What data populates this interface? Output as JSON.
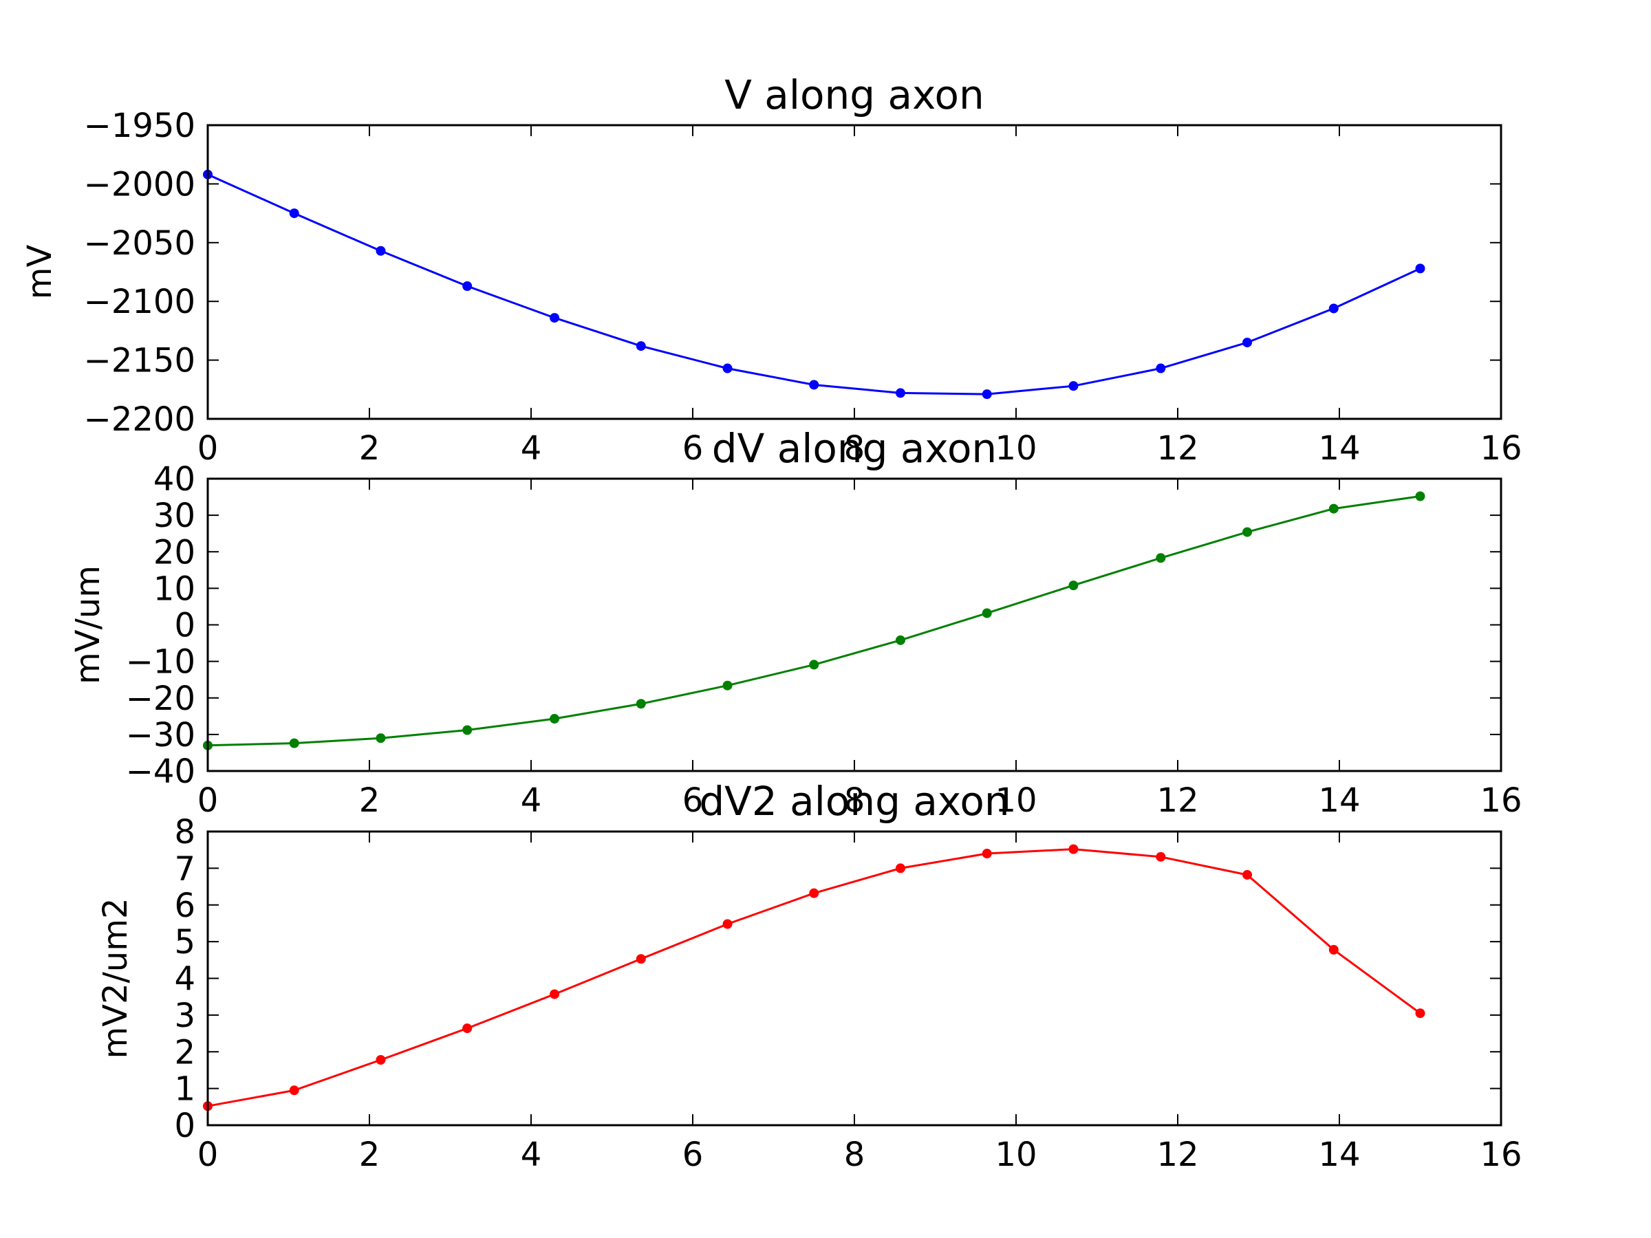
{
  "chart_data": [
    {
      "type": "line",
      "title": "V along axon",
      "xlabel": "",
      "ylabel": "mV",
      "xlim": [
        0,
        16
      ],
      "ylim": [
        -2200,
        -1950
      ],
      "xticks": [
        0,
        2,
        4,
        6,
        8,
        10,
        12,
        14,
        16
      ],
      "yticks": [
        -2200,
        -2150,
        -2100,
        -2050,
        -2000,
        -1950
      ],
      "grid": false,
      "color": "#0000ff",
      "x": [
        0,
        1.07,
        2.14,
        3.21,
        4.29,
        5.36,
        6.43,
        7.5,
        8.57,
        9.64,
        10.71,
        11.79,
        12.86,
        13.93,
        15.0
      ],
      "y": [
        -1992,
        -2025,
        -2057,
        -2087,
        -2114,
        -2138,
        -2157,
        -2171,
        -2178,
        -2179,
        -2172,
        -2157,
        -2135,
        -2106,
        -2072
      ]
    },
    {
      "type": "line",
      "title": "dV along axon",
      "xlabel": "",
      "ylabel": "mV/um",
      "xlim": [
        0,
        16
      ],
      "ylim": [
        -40,
        40
      ],
      "xticks": [
        0,
        2,
        4,
        6,
        8,
        10,
        12,
        14,
        16
      ],
      "yticks": [
        -40,
        -30,
        -20,
        -10,
        0,
        10,
        20,
        30,
        40
      ],
      "grid": false,
      "color": "#008000",
      "x": [
        0,
        1.07,
        2.14,
        3.21,
        4.29,
        5.36,
        6.43,
        7.5,
        8.57,
        9.64,
        10.71,
        11.79,
        12.86,
        13.93,
        15.0
      ],
      "y": [
        -33.0,
        -32.4,
        -31.0,
        -28.8,
        -25.7,
        -21.6,
        -16.6,
        -10.9,
        -4.2,
        3.2,
        10.8,
        18.3,
        25.4,
        31.8,
        35.2
      ]
    },
    {
      "type": "line",
      "title": "dV2 along axon",
      "xlabel": "",
      "ylabel": "mV2/um2",
      "xlim": [
        0,
        16
      ],
      "ylim": [
        0,
        8
      ],
      "xticks": [
        0,
        2,
        4,
        6,
        8,
        10,
        12,
        14,
        16
      ],
      "yticks": [
        0,
        1,
        2,
        3,
        4,
        5,
        6,
        7,
        8
      ],
      "grid": false,
      "color": "#ff0000",
      "x": [
        0,
        1.07,
        2.14,
        3.21,
        4.29,
        5.36,
        6.43,
        7.5,
        8.57,
        9.64,
        10.71,
        11.79,
        12.86,
        13.93,
        15.0
      ],
      "y": [
        0.52,
        0.95,
        1.78,
        2.64,
        3.57,
        4.53,
        5.48,
        6.32,
        7.0,
        7.4,
        7.52,
        7.31,
        6.82,
        4.78,
        3.05
      ]
    }
  ]
}
